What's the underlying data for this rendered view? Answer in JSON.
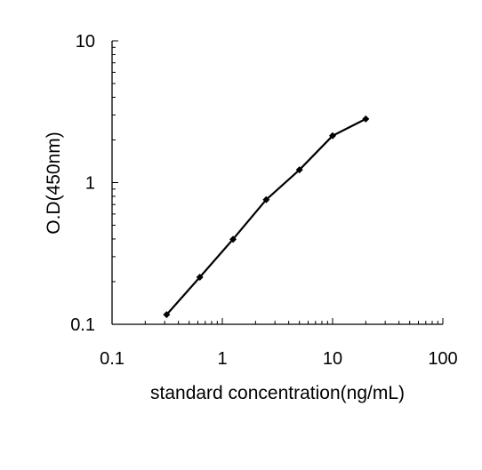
{
  "chart_data": {
    "type": "line",
    "xlabel": "standard concentration(ng/mL)",
    "ylabel": "O.D(450nm)",
    "x_scale": "log",
    "y_scale": "log",
    "xlim": [
      0.1,
      100
    ],
    "ylim": [
      0.1,
      10
    ],
    "x_ticks": [
      "0.1",
      "1",
      "10",
      "100"
    ],
    "y_ticks": [
      "0.1",
      "1",
      "10"
    ],
    "grid": false,
    "legend": "none",
    "series": [
      {
        "x": [
          0.3125,
          0.625,
          1.25,
          2.5,
          5,
          10,
          20
        ],
        "y": [
          0.117,
          0.215,
          0.398,
          0.757,
          1.23,
          2.14,
          2.81
        ]
      }
    ],
    "colors": {
      "line": "#000000",
      "marker": "#000000",
      "axis": "#000000"
    }
  }
}
